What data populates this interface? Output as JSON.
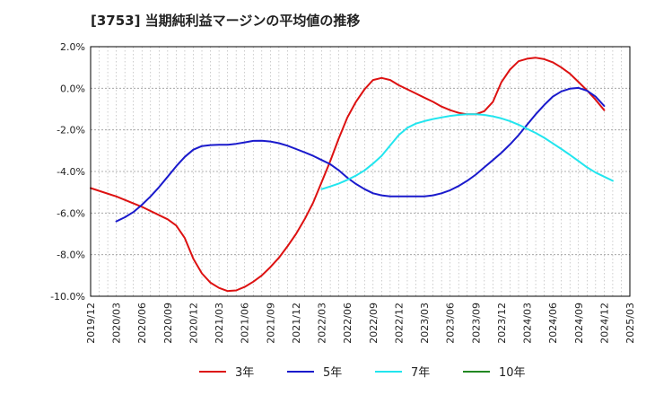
{
  "chart_data": {
    "type": "line",
    "title": "[3753]  当期純利益マージンの平均値の推移",
    "xlabel": "",
    "ylabel": "",
    "ylim": [
      -10,
      2
    ],
    "grid": true,
    "legend_position": "bottom",
    "x_ticks": [
      "2019/12",
      "2020/03",
      "2020/06",
      "2020/09",
      "2020/12",
      "2021/03",
      "2021/06",
      "2021/09",
      "2021/12",
      "2022/03",
      "2022/06",
      "2022/09",
      "2022/12",
      "2023/03",
      "2023/06",
      "2023/09",
      "2023/12",
      "2024/03",
      "2024/06",
      "2024/09",
      "2024/12",
      "2025/03"
    ],
    "y_ticks": [
      2.0,
      0.0,
      -2.0,
      -4.0,
      -6.0,
      -8.0,
      -10.0
    ],
    "y_tick_labels": [
      "2.0%",
      "0.0%",
      "-2.0%",
      "-4.0%",
      "-6.0%",
      "-8.0%",
      "-10.0%"
    ],
    "series": [
      {
        "name": "3年",
        "color": "#dd1111",
        "points": [
          [
            "2019/12",
            -4.8
          ],
          [
            "2020/03",
            -5.2
          ],
          [
            "2020/06",
            -5.7
          ],
          [
            "2020/09",
            -6.3
          ],
          [
            "2020/10",
            -6.6
          ],
          [
            "2020/11",
            -7.2
          ],
          [
            "2020/12",
            -8.2
          ],
          [
            "2021/01",
            -8.9
          ],
          [
            "2021/02",
            -9.35
          ],
          [
            "2021/03",
            -9.6
          ],
          [
            "2021/04",
            -9.75
          ],
          [
            "2021/05",
            -9.72
          ],
          [
            "2021/06",
            -9.55
          ],
          [
            "2021/07",
            -9.3
          ],
          [
            "2021/08",
            -9.0
          ],
          [
            "2021/09",
            -8.6
          ],
          [
            "2021/10",
            -8.15
          ],
          [
            "2021/11",
            -7.6
          ],
          [
            "2021/12",
            -7.0
          ],
          [
            "2022/01",
            -6.3
          ],
          [
            "2022/02",
            -5.5
          ],
          [
            "2022/03",
            -4.5
          ],
          [
            "2022/04",
            -3.5
          ],
          [
            "2022/05",
            -2.4
          ],
          [
            "2022/06",
            -1.4
          ],
          [
            "2022/07",
            -0.65
          ],
          [
            "2022/08",
            -0.05
          ],
          [
            "2022/09",
            0.4
          ],
          [
            "2022/10",
            0.5
          ],
          [
            "2022/11",
            0.4
          ],
          [
            "2022/12",
            0.15
          ],
          [
            "2023/01",
            -0.05
          ],
          [
            "2023/02",
            -0.25
          ],
          [
            "2023/03",
            -0.45
          ],
          [
            "2023/04",
            -0.65
          ],
          [
            "2023/05",
            -0.88
          ],
          [
            "2023/06",
            -1.05
          ],
          [
            "2023/07",
            -1.18
          ],
          [
            "2023/08",
            -1.25
          ],
          [
            "2023/09",
            -1.25
          ],
          [
            "2023/10",
            -1.1
          ],
          [
            "2023/11",
            -0.65
          ],
          [
            "2023/12",
            0.3
          ],
          [
            "2024/01",
            0.9
          ],
          [
            "2024/02",
            1.3
          ],
          [
            "2024/03",
            1.42
          ],
          [
            "2024/04",
            1.47
          ],
          [
            "2024/05",
            1.4
          ],
          [
            "2024/06",
            1.25
          ],
          [
            "2024/07",
            1.0
          ],
          [
            "2024/08",
            0.7
          ],
          [
            "2024/09",
            0.3
          ],
          [
            "2024/10",
            -0.1
          ],
          [
            "2024/11",
            -0.55
          ],
          [
            "2024/12",
            -1.05
          ]
        ]
      },
      {
        "name": "5年",
        "color": "#1a1acc",
        "points": [
          [
            "2020/03",
            -6.4
          ],
          [
            "2020/04",
            -6.2
          ],
          [
            "2020/05",
            -5.95
          ],
          [
            "2020/06",
            -5.6
          ],
          [
            "2020/07",
            -5.2
          ],
          [
            "2020/08",
            -4.75
          ],
          [
            "2020/09",
            -4.25
          ],
          [
            "2020/10",
            -3.75
          ],
          [
            "2020/11",
            -3.3
          ],
          [
            "2020/12",
            -2.95
          ],
          [
            "2021/01",
            -2.78
          ],
          [
            "2021/02",
            -2.73
          ],
          [
            "2021/03",
            -2.72
          ],
          [
            "2021/04",
            -2.72
          ],
          [
            "2021/05",
            -2.67
          ],
          [
            "2021/06",
            -2.6
          ],
          [
            "2021/07",
            -2.53
          ],
          [
            "2021/08",
            -2.52
          ],
          [
            "2021/09",
            -2.56
          ],
          [
            "2021/10",
            -2.64
          ],
          [
            "2021/11",
            -2.76
          ],
          [
            "2021/12",
            -2.92
          ],
          [
            "2022/01",
            -3.08
          ],
          [
            "2022/02",
            -3.25
          ],
          [
            "2022/03",
            -3.45
          ],
          [
            "2022/04",
            -3.65
          ],
          [
            "2022/05",
            -3.95
          ],
          [
            "2022/06",
            -4.3
          ],
          [
            "2022/07",
            -4.6
          ],
          [
            "2022/08",
            -4.85
          ],
          [
            "2022/09",
            -5.05
          ],
          [
            "2022/10",
            -5.15
          ],
          [
            "2022/11",
            -5.2
          ],
          [
            "2022/12",
            -5.2
          ],
          [
            "2023/01",
            -5.2
          ],
          [
            "2023/02",
            -5.2
          ],
          [
            "2023/03",
            -5.2
          ],
          [
            "2023/04",
            -5.15
          ],
          [
            "2023/05",
            -5.05
          ],
          [
            "2023/06",
            -4.9
          ],
          [
            "2023/07",
            -4.7
          ],
          [
            "2023/08",
            -4.45
          ],
          [
            "2023/09",
            -4.15
          ],
          [
            "2023/10",
            -3.8
          ],
          [
            "2023/11",
            -3.45
          ],
          [
            "2023/12",
            -3.1
          ],
          [
            "2024/01",
            -2.7
          ],
          [
            "2024/02",
            -2.25
          ],
          [
            "2024/03",
            -1.75
          ],
          [
            "2024/04",
            -1.25
          ],
          [
            "2024/05",
            -0.8
          ],
          [
            "2024/06",
            -0.4
          ],
          [
            "2024/07",
            -0.15
          ],
          [
            "2024/08",
            -0.02
          ],
          [
            "2024/09",
            0.02
          ],
          [
            "2024/10",
            -0.12
          ],
          [
            "2024/11",
            -0.4
          ],
          [
            "2024/12",
            -0.85
          ]
        ]
      },
      {
        "name": "7年",
        "color": "#22e5ee",
        "points": [
          [
            "2022/03",
            -4.85
          ],
          [
            "2022/04",
            -4.72
          ],
          [
            "2022/05",
            -4.58
          ],
          [
            "2022/06",
            -4.4
          ],
          [
            "2022/07",
            -4.2
          ],
          [
            "2022/08",
            -3.95
          ],
          [
            "2022/09",
            -3.62
          ],
          [
            "2022/10",
            -3.25
          ],
          [
            "2022/11",
            -2.75
          ],
          [
            "2022/12",
            -2.25
          ],
          [
            "2023/01",
            -1.9
          ],
          [
            "2023/02",
            -1.7
          ],
          [
            "2023/03",
            -1.58
          ],
          [
            "2023/04",
            -1.48
          ],
          [
            "2023/05",
            -1.4
          ],
          [
            "2023/06",
            -1.33
          ],
          [
            "2023/07",
            -1.28
          ],
          [
            "2023/08",
            -1.25
          ],
          [
            "2023/09",
            -1.25
          ],
          [
            "2023/10",
            -1.28
          ],
          [
            "2023/11",
            -1.35
          ],
          [
            "2023/12",
            -1.45
          ],
          [
            "2024/01",
            -1.58
          ],
          [
            "2024/02",
            -1.75
          ],
          [
            "2024/03",
            -1.95
          ],
          [
            "2024/04",
            -2.15
          ],
          [
            "2024/05",
            -2.38
          ],
          [
            "2024/06",
            -2.65
          ],
          [
            "2024/07",
            -2.92
          ],
          [
            "2024/08",
            -3.2
          ],
          [
            "2024/09",
            -3.5
          ],
          [
            "2024/10",
            -3.8
          ],
          [
            "2024/11",
            -4.05
          ],
          [
            "2024/12",
            -4.25
          ],
          [
            "2025/01",
            -4.45
          ]
        ]
      },
      {
        "name": "10年",
        "color": "#228822",
        "points": []
      }
    ]
  }
}
